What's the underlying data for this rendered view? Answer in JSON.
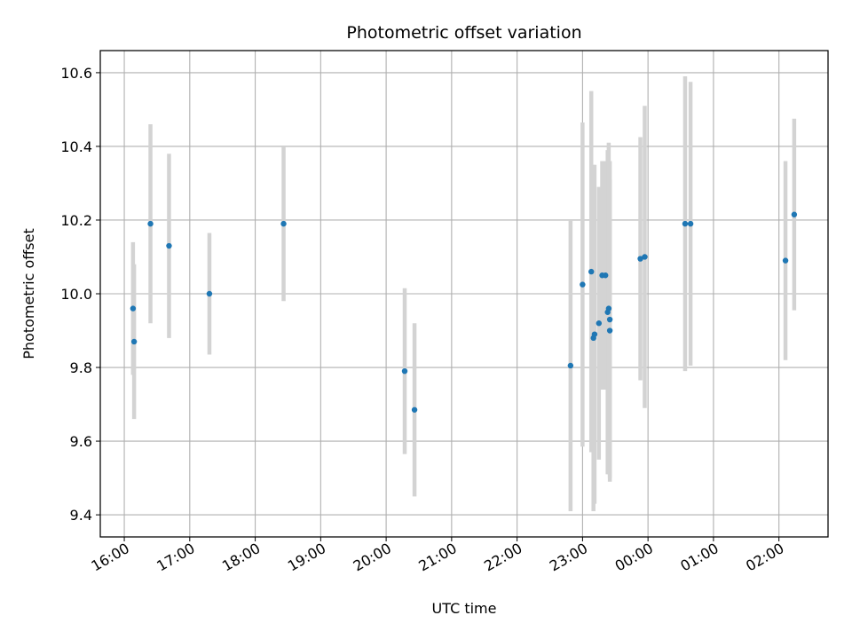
{
  "chart_data": {
    "type": "scatter",
    "title": "Photometric offset variation",
    "xlabel": "UTC time",
    "ylabel": "Photometric offset",
    "x_ticks": [
      "16:00",
      "17:00",
      "18:00",
      "19:00",
      "20:00",
      "21:00",
      "22:00",
      "23:00",
      "00:00",
      "01:00",
      "02:00"
    ],
    "y_ticks": [
      "9.4",
      "9.6",
      "9.8",
      "10.0",
      "10.2",
      "10.4",
      "10.6"
    ],
    "xlim": [
      "15:38",
      "02:45"
    ],
    "ylim": [
      9.34,
      10.66
    ],
    "grid": true,
    "colors": {
      "marker": "#1f77b4",
      "errorbar": "#d3d3d3",
      "grid": "#b0b0b0"
    },
    "points": [
      {
        "x": "16:08",
        "y": 9.96,
        "err": 0.18
      },
      {
        "x": "16:09",
        "y": 9.87,
        "err": 0.21
      },
      {
        "x": "16:24",
        "y": 10.19,
        "err": 0.27
      },
      {
        "x": "16:41",
        "y": 10.13,
        "err": 0.25
      },
      {
        "x": "17:18",
        "y": 10.0,
        "err": 0.165
      },
      {
        "x": "18:26",
        "y": 10.19,
        "err": 0.21
      },
      {
        "x": "20:17",
        "y": 9.79,
        "err": 0.225
      },
      {
        "x": "20:26",
        "y": 9.685,
        "err": 0.235
      },
      {
        "x": "22:49",
        "y": 9.805,
        "err": 0.395
      },
      {
        "x": "23:00",
        "y": 10.025,
        "err": 0.44
      },
      {
        "x": "23:08",
        "y": 10.06,
        "err": 0.49
      },
      {
        "x": "23:10",
        "y": 9.88,
        "err": 0.47
      },
      {
        "x": "23:11",
        "y": 9.89,
        "err": 0.46
      },
      {
        "x": "23:15",
        "y": 9.92,
        "err": 0.37
      },
      {
        "x": "23:18",
        "y": 10.05,
        "err": 0.31
      },
      {
        "x": "23:21",
        "y": 10.05,
        "err": 0.31
      },
      {
        "x": "23:23",
        "y": 9.95,
        "err": 0.44
      },
      {
        "x": "23:24",
        "y": 9.96,
        "err": 0.45
      },
      {
        "x": "23:25",
        "y": 9.93,
        "err": 0.43
      },
      {
        "x": "23:25",
        "y": 9.9,
        "err": 0.41
      },
      {
        "x": "23:53",
        "y": 10.095,
        "err": 0.33
      },
      {
        "x": "23:57",
        "y": 10.1,
        "err": 0.41
      },
      {
        "x": "00:34",
        "y": 10.19,
        "err": 0.4
      },
      {
        "x": "00:39",
        "y": 10.19,
        "err": 0.385
      },
      {
        "x": "02:06",
        "y": 10.09,
        "err": 0.27
      },
      {
        "x": "02:14",
        "y": 10.215,
        "err": 0.26
      }
    ]
  }
}
